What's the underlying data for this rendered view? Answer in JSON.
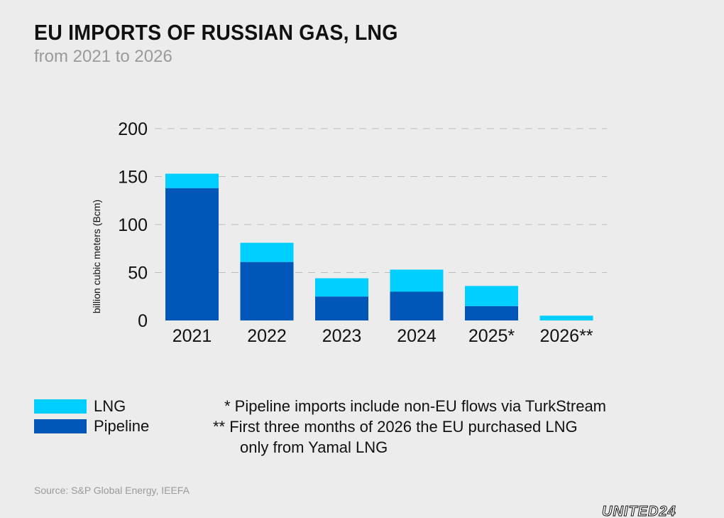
{
  "header": {
    "title": "EU IMPORTS OF RUSSIAN GAS, LNG",
    "subtitle": "from 2021 to 2026"
  },
  "chart_data": {
    "type": "bar",
    "stacked": true,
    "categories": [
      "2021",
      "2022",
      "2023",
      "2024",
      "2025*",
      "2026**"
    ],
    "series": [
      {
        "name": "Pipeline",
        "color": "#0057b7",
        "values": [
          138,
          61,
          25,
          30,
          15,
          0
        ]
      },
      {
        "name": "LNG",
        "color": "#00cfff",
        "values": [
          15,
          20,
          19,
          23,
          21,
          5
        ]
      }
    ],
    "ylabel": "billion cubic meters (Bcm)",
    "ylim": [
      0,
      200
    ],
    "yticks": [
      "0",
      "50",
      "100",
      "150",
      "200"
    ],
    "grid": true,
    "legend_position": "bottom-left"
  },
  "legend": {
    "items": [
      {
        "label": "LNG",
        "color": "#00cfff"
      },
      {
        "label": "Pipeline",
        "color": "#0057b7"
      }
    ]
  },
  "notes": {
    "line1": "* Pipeline imports include non-EU flows via TurkStream",
    "line2": "** First three months of 2026 the EU purchased LNG",
    "line3": "only from Yamal LNG"
  },
  "footer": {
    "source": "Source: S&P Global Energy, IEEFA",
    "brand": "UNITED24"
  }
}
